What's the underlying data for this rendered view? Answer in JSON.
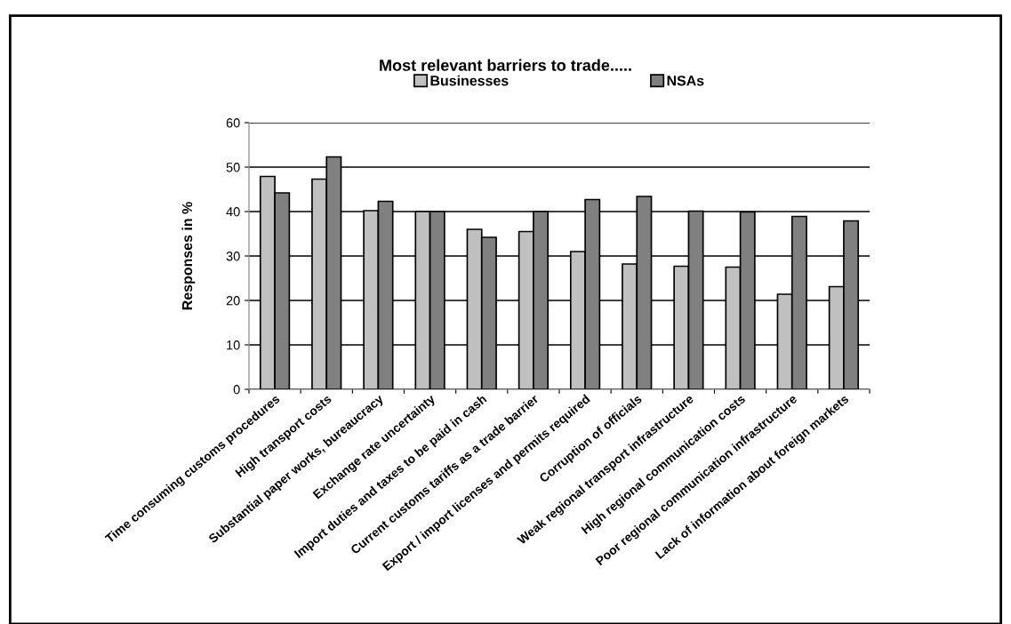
{
  "chart_data": {
    "type": "bar",
    "title": "Most relevant barriers to trade.....",
    "ylabel": "Responses in %",
    "categories": [
      "Time consuming customs procedures",
      "High transport costs",
      "Substantial paper works, bureaucracy",
      "Exchange rate uncertainty",
      "Import duties and taxes to be paid in cash",
      "Current customs tariffs as a trade barrier",
      "Export / import licenses and permits required",
      "Corruption of officials",
      "Weak regional transport infrastructure",
      "High regional communication costs",
      "Poor regional communication infrastructure",
      "Lack of information about foreign markets"
    ],
    "series": [
      {
        "name": "Businesses",
        "color": "#c0c0c0",
        "values": [
          47.9,
          47.3,
          40.2,
          40.0,
          36.0,
          35.5,
          31.0,
          28.2,
          27.7,
          27.5,
          21.4,
          23.1
        ]
      },
      {
        "name": "NSAs",
        "color": "#808080",
        "values": [
          44.2,
          52.3,
          42.3,
          40.0,
          34.2,
          40.0,
          42.7,
          43.4,
          40.1,
          39.9,
          38.9,
          37.9
        ]
      }
    ],
    "ylim": [
      0,
      60
    ],
    "yticks": [
      0,
      10,
      20,
      30,
      40,
      50,
      60
    ],
    "grid": "y",
    "legend": "top"
  }
}
